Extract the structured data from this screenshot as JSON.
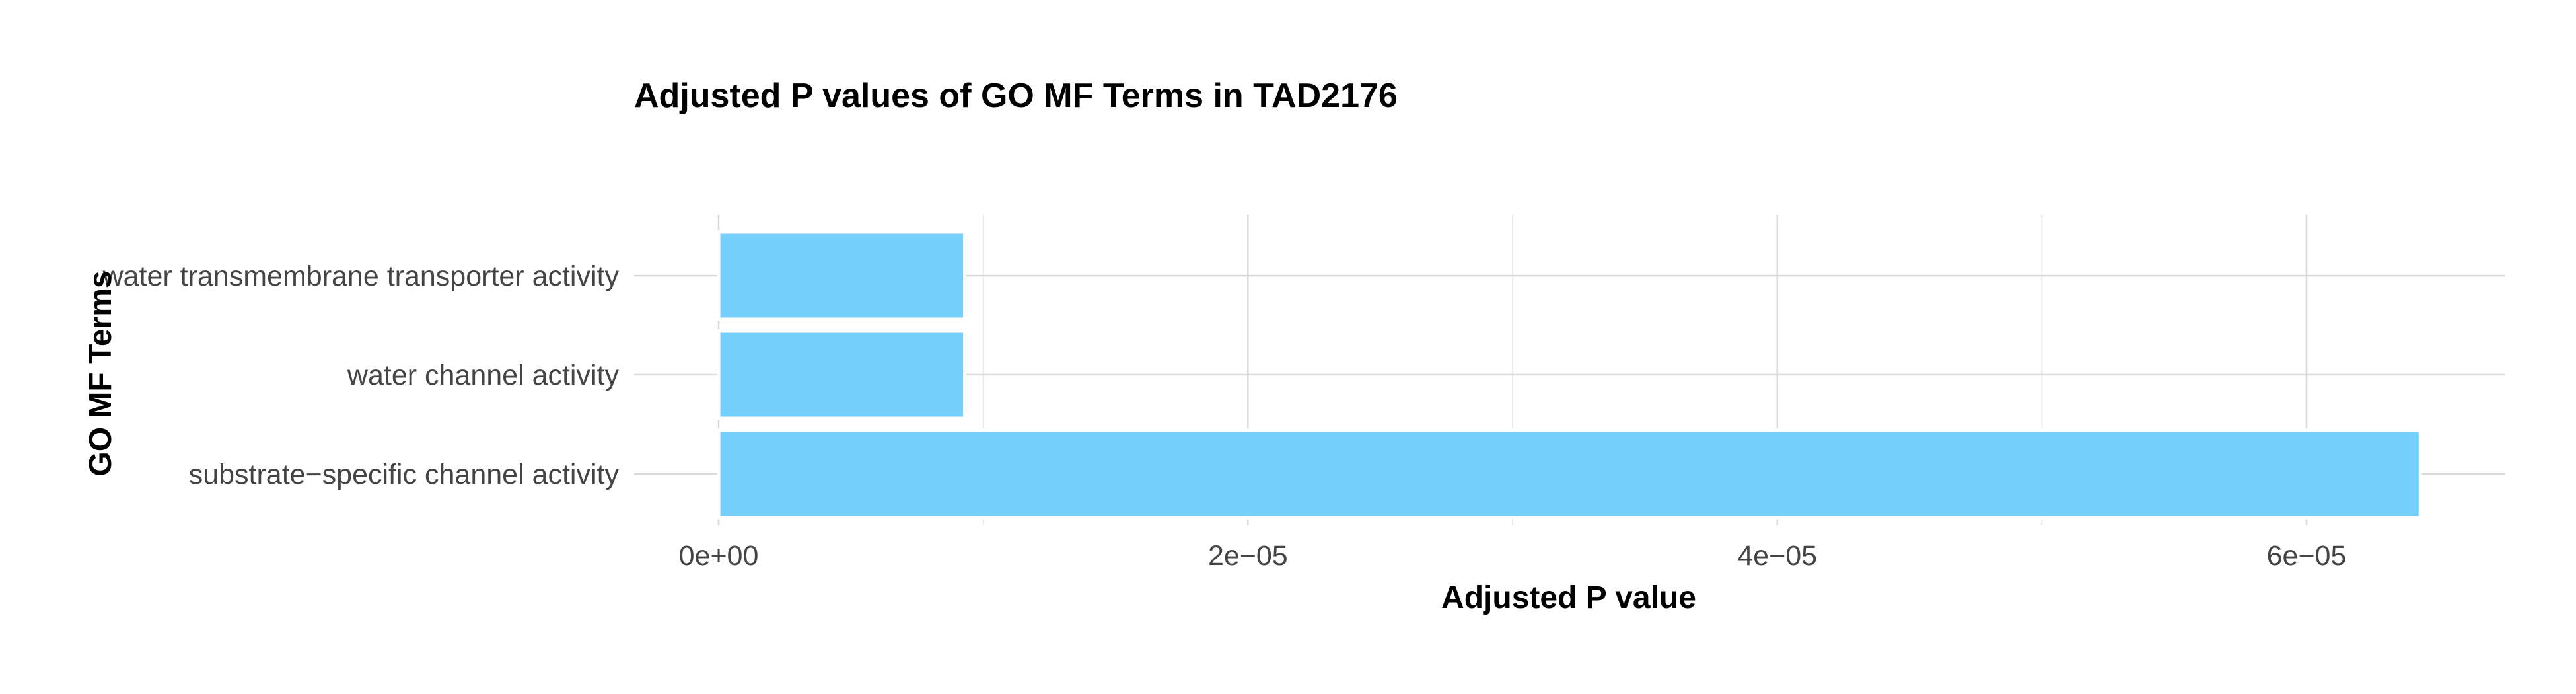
{
  "chart_data": {
    "type": "bar",
    "orientation": "horizontal",
    "title": "Adjusted P values of GO MF Terms in TAD2176",
    "xlabel": "Adjusted P value",
    "ylabel": "GO MF Terms",
    "categories": [
      "water transmembrane transporter activity",
      "water channel activity",
      "substrate−specific channel activity"
    ],
    "values": [
      9.3e-06,
      9.3e-06,
      6.43e-05
    ],
    "xlim": [
      0,
      6.75e-05
    ],
    "xticks": [
      0,
      2e-05,
      4e-05,
      6e-05
    ],
    "xtick_labels": [
      "0e+00",
      "2e−05",
      "4e−05",
      "6e−05"
    ],
    "bar_color": "#75cffc",
    "grid": true
  }
}
